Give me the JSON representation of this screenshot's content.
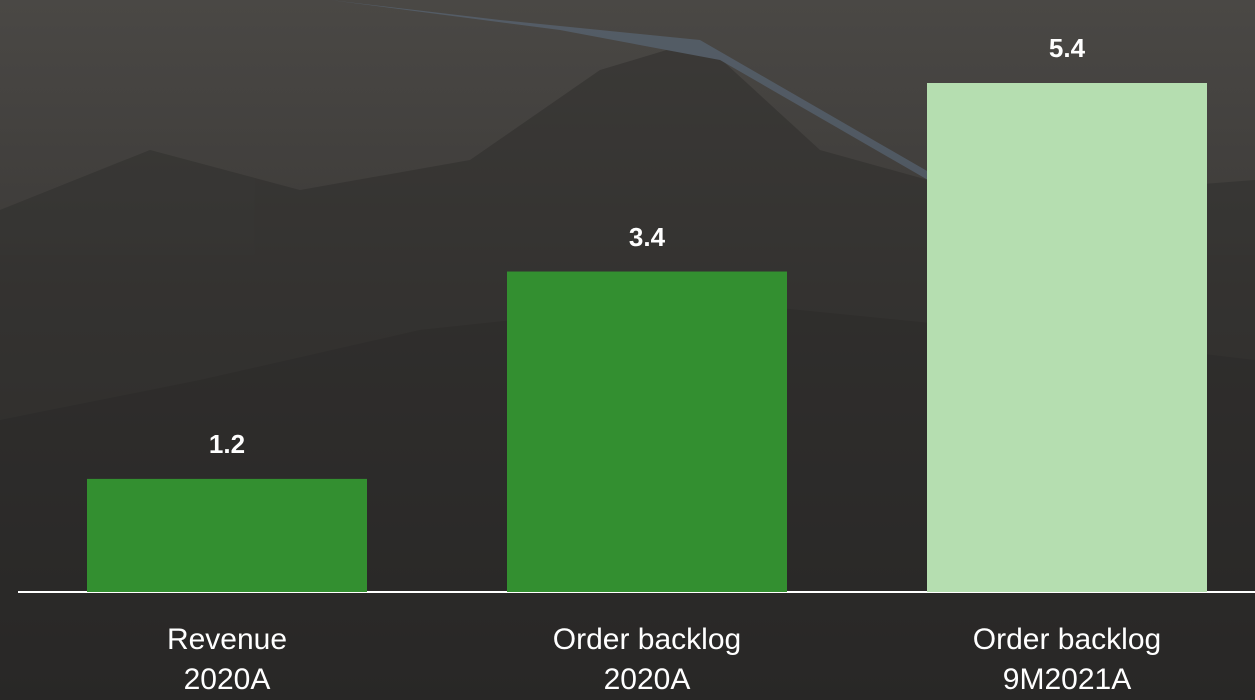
{
  "chart_data": {
    "type": "bar",
    "categories": [
      "Revenue\n2020A",
      "Order backlog\n2020A",
      "Order backlog\n9M2021A"
    ],
    "values": [
      1.2,
      3.4,
      5.4
    ],
    "colors": [
      "#338f30",
      "#338f30",
      "#b5deb0"
    ]
  }
}
